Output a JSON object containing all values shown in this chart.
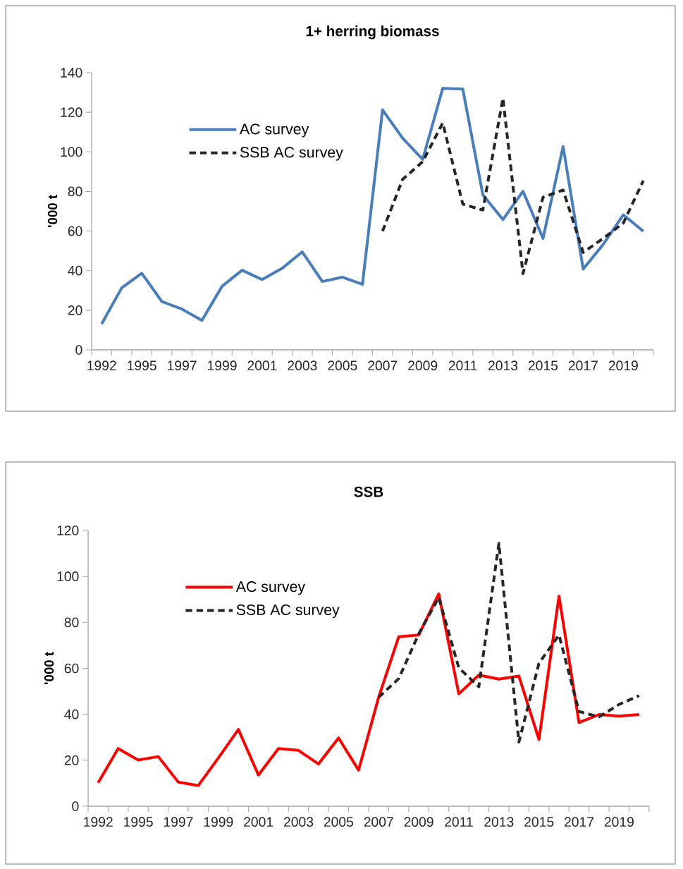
{
  "chart_data": [
    {
      "type": "line",
      "title": "1+ herring biomass",
      "ylabel": "'000 t",
      "categories": [
        "1992",
        null,
        "1995",
        null,
        "1997",
        null,
        "1999",
        null,
        "2001",
        null,
        "2003",
        null,
        "2005",
        null,
        "2007",
        null,
        "2009",
        null,
        "2011",
        null,
        "2013",
        null,
        "2015",
        null,
        "2017",
        null,
        "2019",
        null
      ],
      "ylim": [
        0,
        140
      ],
      "yticks": [
        0,
        20,
        40,
        60,
        80,
        100,
        120,
        140
      ],
      "grid": false,
      "legend": "top left",
      "series": [
        {
          "name": "AC survey",
          "color": "#4a7ebb",
          "line_style": "solid",
          "values": [
            13.1,
            31.3,
            38.7,
            24.4,
            20.6,
            14.9,
            32.1,
            40.2,
            35.5,
            41.2,
            49.5,
            34.5,
            36.7,
            33.1,
            121.2,
            106.9,
            96.2,
            132.1,
            131.7,
            78.3,
            65.8,
            80.1,
            56.3,
            102.7,
            40.8,
            53.3,
            68.2,
            59.9
          ]
        },
        {
          "name": "SSB AC survey",
          "color": "#262626",
          "line_style": "dashed",
          "values": [
            null,
            null,
            null,
            null,
            null,
            null,
            null,
            null,
            null,
            null,
            null,
            null,
            null,
            null,
            59.9,
            86.1,
            95.0,
            114.6,
            73.6,
            70.6,
            127.1,
            38.5,
            77.1,
            80.7,
            49.2,
            56.3,
            64.0,
            85.5
          ]
        }
      ]
    },
    {
      "type": "line",
      "title": "SSB",
      "ylabel": "'000 t",
      "categories": [
        "1992",
        null,
        "1995",
        null,
        "1997",
        null,
        "1999",
        null,
        "2001",
        null,
        "2003",
        null,
        "2005",
        null,
        "2007",
        null,
        "2009",
        null,
        "2011",
        null,
        "2013",
        null,
        "2015",
        null,
        "2017",
        null,
        "2019",
        null
      ],
      "ylim": [
        0,
        120
      ],
      "yticks": [
        0,
        20,
        40,
        60,
        80,
        100,
        120
      ],
      "grid": false,
      "legend": "top left",
      "series": [
        {
          "name": "AC survey",
          "color": "#ff0000",
          "line_style": "solid",
          "values": [
            10.2,
            25.1,
            20.1,
            21.6,
            10.5,
            9.0,
            21.0,
            33.4,
            13.6,
            25.1,
            24.3,
            18.4,
            29.7,
            15.7,
            47.4,
            73.7,
            74.5,
            92.4,
            48.9,
            57.1,
            55.3,
            56.6,
            29.0,
            91.4,
            36.4,
            39.9,
            39.2,
            39.9
          ]
        },
        {
          "name": "SSB AC survey",
          "color": "#262626",
          "line_style": "dashed",
          "values": [
            null,
            null,
            null,
            null,
            null,
            null,
            null,
            null,
            null,
            null,
            null,
            null,
            null,
            null,
            47.4,
            55.5,
            75.0,
            90.8,
            60.2,
            52.0,
            114.4,
            27.9,
            62.2,
            74.5,
            41.2,
            38.9,
            44.3,
            48.1
          ]
        }
      ]
    }
  ]
}
